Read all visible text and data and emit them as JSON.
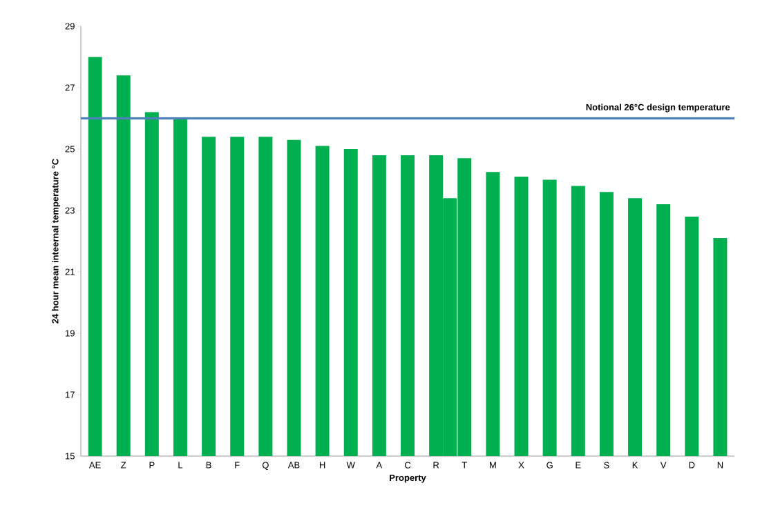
{
  "chart_data": {
    "type": "bar",
    "xlabel": "Property",
    "ylabel": "24 hour mean inteernal temperature °C",
    "categories": [
      "AE",
      "Z",
      "P",
      "L",
      "B",
      "F",
      "Q",
      "AB",
      "H",
      "W",
      "A",
      "C",
      "R",
      "T",
      "M",
      "X",
      "G",
      "E",
      "S",
      "K",
      "V",
      "D",
      "N"
    ],
    "series": [
      {
        "color": "#00b050",
        "values": [
          28.0,
          27.4,
          26.2,
          26.0,
          25.4,
          25.4,
          25.4,
          25.3,
          25.1,
          25.0,
          24.8,
          24.8,
          24.8,
          24.7,
          24.25,
          24.1,
          24.0,
          23.8,
          23.6,
          23.4,
          23.2,
          22.8,
          22.1
        ]
      },
      {
        "color": "#00b050",
        "values": [
          null,
          null,
          null,
          null,
          null,
          null,
          null,
          null,
          null,
          null,
          null,
          null,
          23.4,
          null,
          null,
          null,
          null,
          null,
          null,
          null,
          null,
          null,
          null
        ]
      }
    ],
    "ylim": [
      15,
      29
    ],
    "yticks": [
      15,
      17,
      19,
      21,
      23,
      25,
      27,
      29
    ],
    "ref_lines": [
      {
        "axis": "y",
        "value": 26,
        "label": "Notional 26°C design temperature",
        "color": "#4f81bd"
      }
    ],
    "grid": false,
    "legend": false
  }
}
